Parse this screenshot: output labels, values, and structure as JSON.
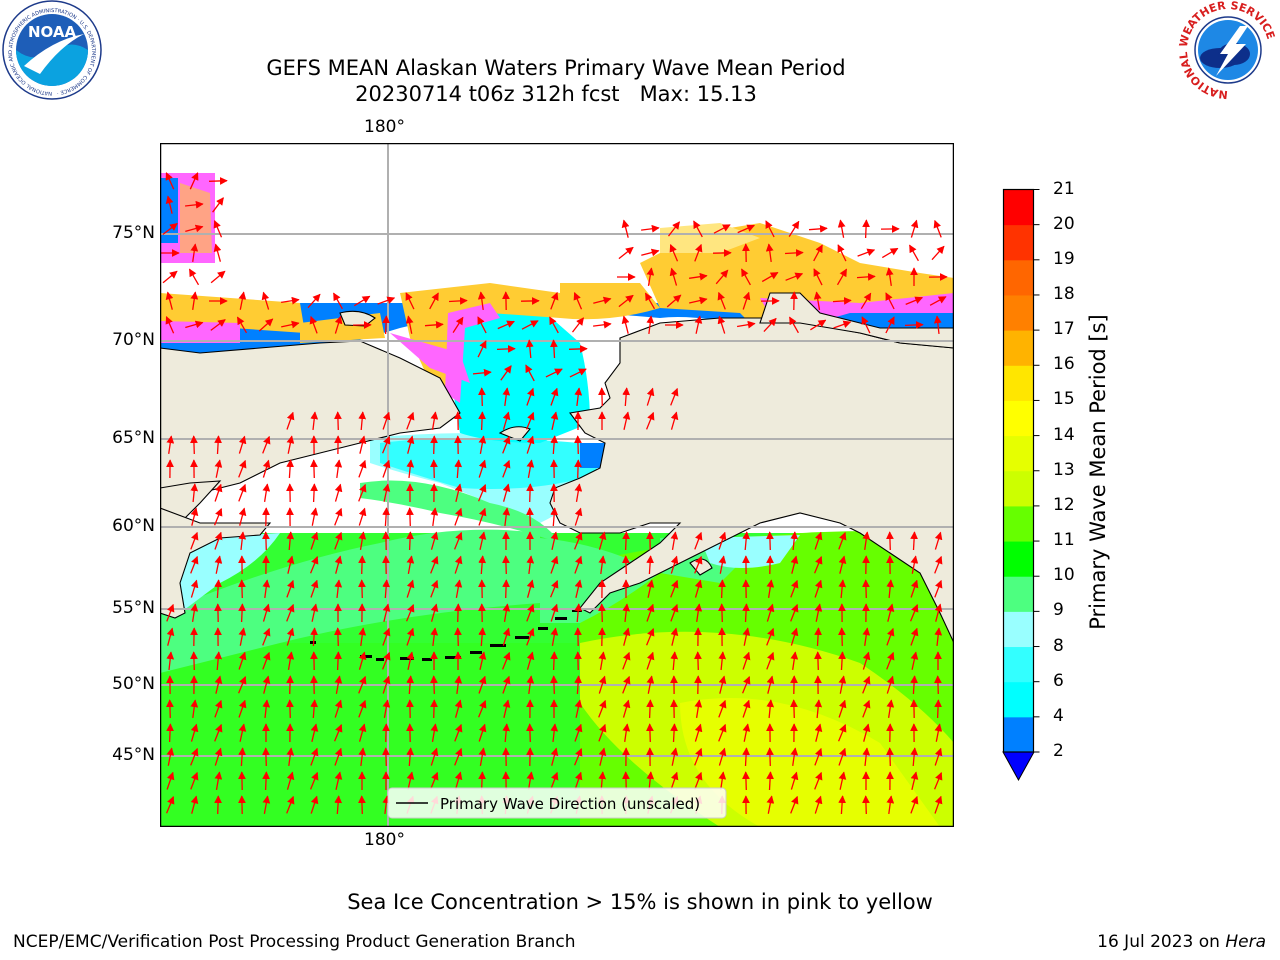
{
  "title": {
    "line1": "GEFS MEAN Alaskan Waters Primary Wave Mean Period",
    "line2": "20230714 t06z 312h fcst   Max: 15.13"
  },
  "map": {
    "lon_label_top": "180°",
    "lon_label_bottom": "180°",
    "lat_labels": [
      "75°N",
      "70°N",
      "65°N",
      "60°N",
      "55°N",
      "50°N",
      "45°N"
    ],
    "legend_label": "Primary Wave Direction (unscaled)",
    "colors": {
      "land": "#eeebdc",
      "coast": "#000000",
      "grid": "#b0b0b0",
      "arrow": "#ff0000"
    }
  },
  "colorbar": {
    "title": "Primary Wave Mean Period [s]",
    "levels": [
      "2",
      "4",
      "6",
      "8",
      "9",
      "10",
      "11",
      "12",
      "13",
      "14",
      "15",
      "16",
      "17",
      "18",
      "19",
      "20",
      "21"
    ],
    "colors": [
      "#0080ff",
      "#00ffff",
      "#33ffff",
      "#99ffff",
      "#4dff80",
      "#00ff00",
      "#66ff00",
      "#ccff00",
      "#e6ff00",
      "#ffff00",
      "#ffe600",
      "#ffb300",
      "#ff8000",
      "#ff6600",
      "#ff3300",
      "#ff0000"
    ],
    "under_color": "#0000ff"
  },
  "footnote": "Sea Ice Concentration > 15% is shown in pink to yellow",
  "footer": {
    "left": "NCEP/EMC/Verification Post Processing Product Generation Branch",
    "right_date": "16 Jul 2023 on ",
    "right_host": "Hera"
  },
  "logos": {
    "noaa_text": "NOAA",
    "noaa_ring": "NATIONAL OCEANIC AND ATMOSPHERIC ADMINISTRATION · U.S. DEPARTMENT OF COMMERCE ·",
    "nws_ring": "NATIONAL WEATHER SERVICE"
  }
}
